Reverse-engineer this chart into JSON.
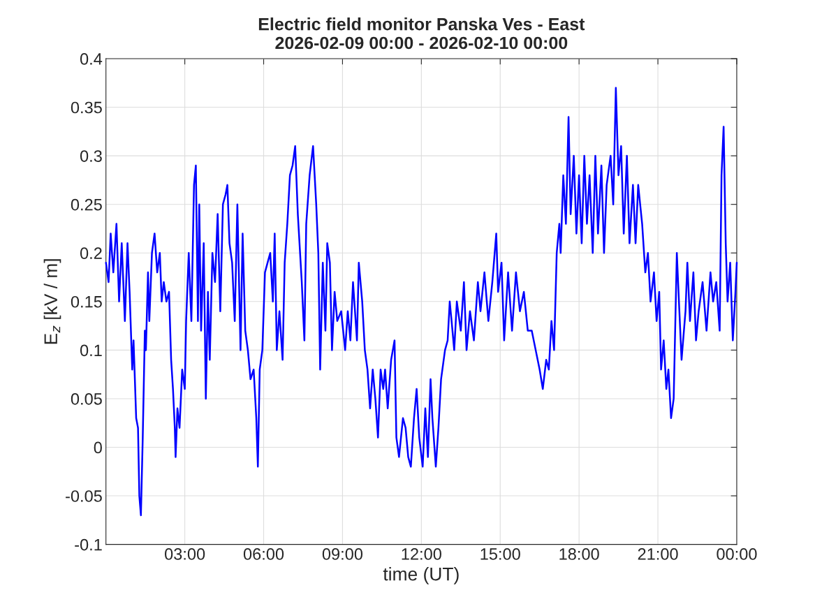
{
  "chart_data": {
    "type": "line",
    "title": "Electric field monitor Panska Ves - East",
    "subtitle": "2026-02-09 00:00 - 2026-02-10 00:00",
    "xlabel": "time (UT)",
    "ylabel": "E$_{z}$ [kV / m]",
    "xlim": [
      0,
      24
    ],
    "xticks": [
      {
        "value": 3,
        "label": "03:00"
      },
      {
        "value": 6,
        "label": "06:00"
      },
      {
        "value": 9,
        "label": "09:00"
      },
      {
        "value": 12,
        "label": "12:00"
      },
      {
        "value": 15,
        "label": "15:00"
      },
      {
        "value": 18,
        "label": "18:00"
      },
      {
        "value": 21,
        "label": "21:00"
      },
      {
        "value": 24,
        "label": "00:00"
      }
    ],
    "ylim": [
      -0.1,
      0.4
    ],
    "yticks": [
      -0.1,
      -0.05,
      0,
      0.05,
      0.1,
      0.15,
      0.2,
      0.25,
      0.3,
      0.35,
      0.4
    ],
    "grid": true,
    "line_style": "solid",
    "marker": "none",
    "x": [
      0.0,
      0.1,
      0.18,
      0.28,
      0.4,
      0.5,
      0.6,
      0.72,
      0.82,
      0.9,
      1.0,
      1.05,
      1.15,
      1.22,
      1.27,
      1.33,
      1.4,
      1.48,
      1.52,
      1.6,
      1.65,
      1.75,
      1.85,
      1.95,
      2.05,
      2.12,
      2.2,
      2.3,
      2.4,
      2.48,
      2.55,
      2.62,
      2.65,
      2.72,
      2.8,
      2.9,
      3.0,
      3.05,
      3.15,
      3.25,
      3.35,
      3.42,
      3.5,
      3.55,
      3.62,
      3.72,
      3.8,
      3.88,
      3.95,
      4.05,
      4.15,
      4.25,
      4.35,
      4.45,
      4.55,
      4.62,
      4.7,
      4.8,
      4.9,
      5.0,
      5.12,
      5.2,
      5.3,
      5.4,
      5.5,
      5.62,
      5.72,
      5.78,
      5.85,
      5.95,
      6.05,
      6.15,
      6.25,
      6.35,
      6.42,
      6.5,
      6.6,
      6.72,
      6.8,
      6.9,
      7.0,
      7.1,
      7.2,
      7.3,
      7.45,
      7.55,
      7.62,
      7.75,
      7.88,
      8.0,
      8.08,
      8.15,
      8.25,
      8.35,
      8.42,
      8.52,
      8.6,
      8.7,
      8.8,
      8.95,
      9.1,
      9.2,
      9.3,
      9.4,
      9.55,
      9.62,
      9.75,
      9.85,
      9.95,
      10.05,
      10.15,
      10.25,
      10.35,
      10.45,
      10.55,
      10.62,
      10.72,
      10.85,
      10.98,
      11.05,
      11.15,
      11.3,
      11.4,
      11.5,
      11.6,
      11.72,
      11.82,
      11.92,
      12.05,
      12.15,
      12.25,
      12.35,
      12.42,
      12.55,
      12.65,
      12.75,
      12.9,
      13.0,
      13.08,
      13.15,
      13.25,
      13.35,
      13.5,
      13.62,
      13.72,
      13.85,
      14.0,
      14.15,
      14.25,
      14.4,
      14.55,
      14.7,
      14.85,
      14.92,
      15.05,
      15.15,
      15.3,
      15.45,
      15.6,
      15.75,
      15.9,
      16.05,
      16.2,
      16.35,
      16.5,
      16.62,
      16.75,
      16.85,
      16.95,
      17.05,
      17.15,
      17.25,
      17.3,
      17.4,
      17.5,
      17.6,
      17.68,
      17.8,
      17.9,
      18.0,
      18.1,
      18.2,
      18.3,
      18.4,
      18.52,
      18.62,
      18.72,
      18.85,
      18.95,
      19.05,
      19.2,
      19.3,
      19.4,
      19.5,
      19.6,
      19.7,
      19.82,
      19.92,
      20.05,
      20.15,
      20.25,
      20.4,
      20.52,
      20.62,
      20.72,
      20.85,
      20.95,
      21.05,
      21.12,
      21.22,
      21.32,
      21.4,
      21.5,
      21.6,
      21.72,
      21.8,
      21.9,
      22.05,
      22.12,
      22.22,
      22.35,
      22.45,
      22.55,
      22.7,
      22.85,
      23.0,
      23.1,
      23.22,
      23.35,
      23.42,
      23.5,
      23.58,
      23.65,
      23.75,
      23.85,
      23.95,
      24.0
    ],
    "series": [
      {
        "color": "#0000ff",
        "values": [
          0.19,
          0.17,
          0.22,
          0.18,
          0.23,
          0.15,
          0.21,
          0.13,
          0.21,
          0.16,
          0.08,
          0.11,
          0.03,
          0.02,
          -0.05,
          -0.07,
          0.01,
          0.12,
          0.1,
          0.18,
          0.13,
          0.2,
          0.22,
          0.18,
          0.2,
          0.15,
          0.17,
          0.15,
          0.16,
          0.09,
          0.06,
          0.02,
          -0.01,
          0.04,
          0.02,
          0.08,
          0.06,
          0.13,
          0.2,
          0.13,
          0.27,
          0.29,
          0.13,
          0.25,
          0.12,
          0.21,
          0.05,
          0.16,
          0.09,
          0.2,
          0.17,
          0.24,
          0.14,
          0.25,
          0.26,
          0.27,
          0.21,
          0.19,
          0.13,
          0.25,
          0.1,
          0.22,
          0.12,
          0.1,
          0.07,
          0.08,
          0.03,
          -0.02,
          0.08,
          0.1,
          0.18,
          0.19,
          0.2,
          0.15,
          0.22,
          0.1,
          0.14,
          0.09,
          0.19,
          0.23,
          0.28,
          0.29,
          0.31,
          0.24,
          0.17,
          0.11,
          0.23,
          0.28,
          0.31,
          0.25,
          0.2,
          0.08,
          0.19,
          0.12,
          0.21,
          0.19,
          0.1,
          0.16,
          0.13,
          0.14,
          0.1,
          0.14,
          0.11,
          0.17,
          0.11,
          0.19,
          0.15,
          0.1,
          0.08,
          0.04,
          0.08,
          0.05,
          0.01,
          0.08,
          0.06,
          0.08,
          0.04,
          0.09,
          0.11,
          0.01,
          -0.01,
          0.03,
          0.02,
          -0.01,
          -0.02,
          0.03,
          0.06,
          0.01,
          -0.02,
          0.04,
          -0.01,
          0.07,
          0.03,
          -0.02,
          0.02,
          0.07,
          0.1,
          0.11,
          0.15,
          0.13,
          0.1,
          0.15,
          0.12,
          0.17,
          0.1,
          0.14,
          0.11,
          0.17,
          0.14,
          0.18,
          0.13,
          0.17,
          0.22,
          0.16,
          0.19,
          0.11,
          0.18,
          0.12,
          0.18,
          0.14,
          0.16,
          0.12,
          0.12,
          0.1,
          0.08,
          0.06,
          0.09,
          0.08,
          0.13,
          0.1,
          0.2,
          0.23,
          0.2,
          0.28,
          0.23,
          0.34,
          0.24,
          0.3,
          0.22,
          0.28,
          0.21,
          0.3,
          0.23,
          0.28,
          0.2,
          0.3,
          0.22,
          0.29,
          0.2,
          0.27,
          0.3,
          0.25,
          0.37,
          0.28,
          0.31,
          0.22,
          0.3,
          0.21,
          0.27,
          0.21,
          0.27,
          0.23,
          0.18,
          0.2,
          0.15,
          0.18,
          0.13,
          0.16,
          0.08,
          0.11,
          0.06,
          0.08,
          0.03,
          0.05,
          0.2,
          0.15,
          0.09,
          0.14,
          0.19,
          0.13,
          0.18,
          0.11,
          0.14,
          0.17,
          0.12,
          0.18,
          0.15,
          0.17,
          0.12,
          0.28,
          0.33,
          0.21,
          0.15,
          0.19,
          0.11,
          0.16,
          0.19
        ]
      }
    ]
  }
}
